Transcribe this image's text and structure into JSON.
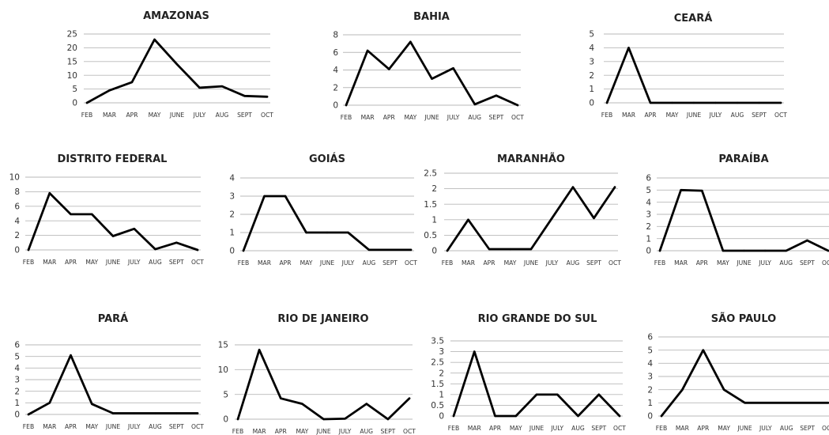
{
  "months": [
    "FEB",
    "MAR",
    "APR",
    "MAY",
    "JUNE",
    "JULY",
    "AUG",
    "SEPT",
    "OCT"
  ],
  "chart_data": [
    {
      "type": "line",
      "title": "AMAZONAS",
      "categories": [
        "FEB",
        "MAR",
        "APR",
        "MAY",
        "JUNE",
        "JULY",
        "AUG",
        "SEPT",
        "OCT"
      ],
      "values": [
        0,
        4.5,
        7.5,
        23,
        14,
        5.5,
        6,
        2.5,
        2.2
      ],
      "ylim": [
        0,
        25
      ],
      "yticks": [
        "0",
        "5",
        "10",
        "15",
        "20",
        "25"
      ],
      "grid": true,
      "legend": "none"
    },
    {
      "type": "line",
      "title": "BAHIA",
      "categories": [
        "FEB",
        "MAR",
        "APR",
        "MAY",
        "JUNE",
        "JULY",
        "AUG",
        "SEPT",
        "OCT"
      ],
      "values": [
        0,
        6.2,
        4.1,
        7.2,
        3,
        4.2,
        0.1,
        1.1,
        0
      ],
      "ylim": [
        0,
        8
      ],
      "yticks": [
        "0",
        "2",
        "4",
        "6",
        "8"
      ],
      "grid": true,
      "legend": "none"
    },
    {
      "type": "line",
      "title": "CEARÁ",
      "categories": [
        "FEB",
        "MAR",
        "APR",
        "MAY",
        "JUNE",
        "JULY",
        "AUG",
        "SEPT",
        "OCT"
      ],
      "values": [
        0,
        4,
        0,
        0,
        0,
        0,
        0,
        0,
        0
      ],
      "ylim": [
        0,
        5
      ],
      "yticks": [
        "0",
        "1",
        "2",
        "3",
        "4",
        "5"
      ],
      "grid": true,
      "legend": "none"
    },
    {
      "type": "line",
      "title": "DISTRITO FEDERAL",
      "categories": [
        "FEB",
        "MAR",
        "APR",
        "MAY",
        "JUNE",
        "JULY",
        "AUG",
        "SEPT",
        "OCT"
      ],
      "values": [
        0,
        7.8,
        4.9,
        4.9,
        1.9,
        2.9,
        0.1,
        1,
        0
      ],
      "ylim": [
        0,
        10
      ],
      "yticks": [
        "0",
        "2",
        "4",
        "6",
        "8",
        "10"
      ],
      "grid": true,
      "legend": "none"
    },
    {
      "type": "line",
      "title": "GOIÁS",
      "categories": [
        "FEB",
        "MAR",
        "APR",
        "MAY",
        "JUNE",
        "JULY",
        "AUG",
        "SEPT",
        "OCT"
      ],
      "values": [
        0,
        3,
        3,
        1,
        1,
        1,
        0.05,
        0.05,
        0.05
      ],
      "ylim": [
        0,
        4
      ],
      "yticks": [
        "0",
        "1",
        "2",
        "3",
        "4"
      ],
      "grid": true,
      "legend": "none"
    },
    {
      "type": "line",
      "title": "MARANHÃO",
      "categories": [
        "FEB",
        "MAR",
        "APR",
        "MAY",
        "JUNE",
        "JULY",
        "AUG",
        "SEPT",
        "OCT"
      ],
      "values": [
        0,
        1,
        0.05,
        0.05,
        0.05,
        1.05,
        2.05,
        1.05,
        2.05
      ],
      "ylim": [
        0,
        2.5
      ],
      "yticks": [
        "0",
        "0.5",
        "1",
        "1.5",
        "2",
        "2.5"
      ],
      "grid": true,
      "legend": "none"
    },
    {
      "type": "line",
      "title": "PARAÍBA",
      "categories": [
        "FEB",
        "MAR",
        "APR",
        "MAY",
        "JUNE",
        "JULY",
        "AUG",
        "SEPT",
        "OCT"
      ],
      "values": [
        0,
        5,
        4.95,
        0,
        0,
        0,
        0,
        0.85,
        0
      ],
      "ylim": [
        0,
        6
      ],
      "yticks": [
        "0",
        "1",
        "2",
        "3",
        "4",
        "5",
        "6"
      ],
      "grid": true,
      "legend": "none"
    },
    {
      "type": "line",
      "title": "PARÁ",
      "categories": [
        "FEB",
        "MAR",
        "APR",
        "MAY",
        "JUNE",
        "JULY",
        "AUG",
        "SEPT",
        "OCT"
      ],
      "values": [
        0,
        1,
        5.1,
        0.9,
        0.1,
        0.1,
        0.1,
        0.1,
        0.1
      ],
      "ylim": [
        0,
        6
      ],
      "yticks": [
        "0",
        "1",
        "2",
        "3",
        "4",
        "5",
        "6"
      ],
      "grid": true,
      "legend": "none"
    },
    {
      "type": "line",
      "title": "RIO DE JANEIRO",
      "categories": [
        "FEB",
        "MAR",
        "APR",
        "MAY",
        "JUNE",
        "JULY",
        "AUG",
        "SEPT",
        "OCT"
      ],
      "values": [
        0,
        14,
        4.2,
        3.1,
        0,
        0.1,
        3.1,
        0,
        4.2
      ],
      "ylim": [
        0,
        15
      ],
      "yticks": [
        "0",
        "5",
        "10",
        "15"
      ],
      "grid": true,
      "legend": "none"
    },
    {
      "type": "line",
      "title": "RIO GRANDE DO SUL",
      "categories": [
        "FEB",
        "MAR",
        "APR",
        "MAY",
        "JUNE",
        "JULY",
        "AUG",
        "SEPT",
        "OCT"
      ],
      "values": [
        0,
        3,
        0,
        0,
        1,
        1,
        0,
        1,
        0
      ],
      "ylim": [
        0,
        3.5
      ],
      "yticks": [
        "0",
        "0.5",
        "1",
        "1.5",
        "2",
        "2.5",
        "3",
        "3.5"
      ],
      "grid": true,
      "legend": "none"
    },
    {
      "type": "line",
      "title": "SÃO PAULO",
      "categories": [
        "FEB",
        "MAR",
        "APR",
        "MAY",
        "JUNE",
        "JULY",
        "AUG",
        "SEPT",
        "OCT"
      ],
      "values": [
        0,
        2,
        5,
        2,
        1,
        1,
        1,
        1,
        1
      ],
      "ylim": [
        0,
        6
      ],
      "yticks": [
        "0",
        "1",
        "2",
        "3",
        "4",
        "5",
        "6"
      ],
      "grid": true,
      "legend": "none"
    }
  ]
}
